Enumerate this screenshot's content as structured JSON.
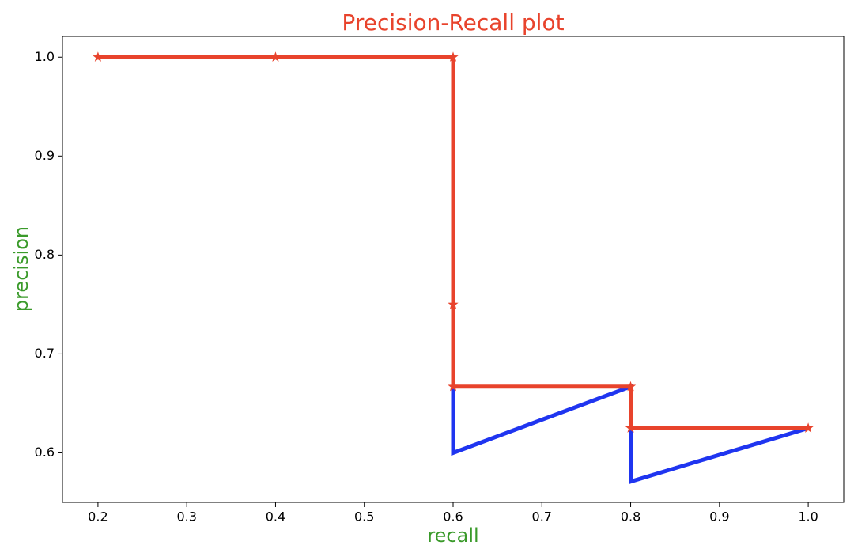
{
  "chart_data": {
    "type": "line",
    "title": "Precision-Recall plot",
    "xlabel": "recall",
    "ylabel": "precision",
    "x": [
      0.2,
      0.4,
      0.6,
      0.6,
      0.6,
      0.8,
      0.8,
      1.0
    ],
    "series": [
      {
        "color": "#1f35f0",
        "values": [
          1.0,
          1.0,
          1.0,
          0.75,
          0.6,
          0.667,
          0.571,
          0.625
        ]
      },
      {
        "color": "#e8432c",
        "marker": "star",
        "values": [
          1.0,
          1.0,
          1.0,
          0.75,
          0.667,
          0.667,
          0.625,
          0.625
        ]
      }
    ],
    "xlim": [
      0.16,
      1.04
    ],
    "ylim": [
      0.55,
      1.021
    ],
    "xticks": [
      0.2,
      0.3,
      0.4,
      0.5,
      0.6,
      0.7,
      0.8,
      0.9,
      {
        "value": 1,
        "label": "1.0"
      }
    ],
    "yticks": [
      0.6,
      0.7,
      0.8,
      0.9,
      {
        "value": 1,
        "label": "1.0"
      }
    ],
    "grid": false
  }
}
